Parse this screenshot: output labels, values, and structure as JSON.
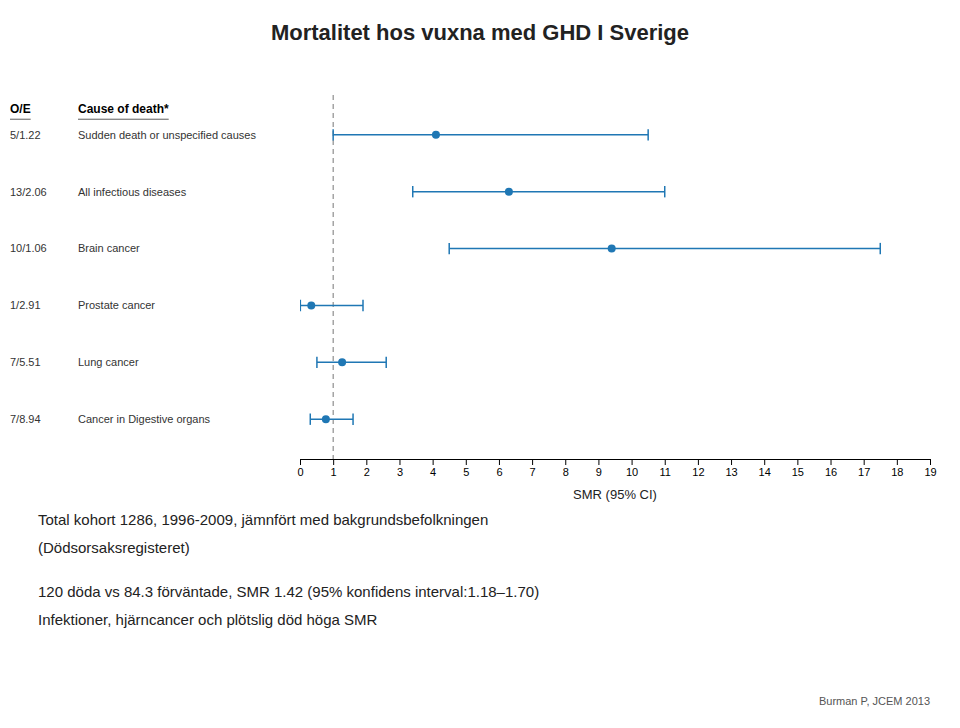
{
  "chart_data": {
    "type": "forest",
    "title": "Mortalitet hos vuxna med GHD I Sverige",
    "oe_header": "O/E",
    "category_header": "Cause of death*",
    "oe_labels": [
      "5/1.22",
      "13/2.06",
      "10/1.06",
      "1/2.91",
      "7/5.51",
      "7/8.94"
    ],
    "categories": [
      "Sudden death or unspecified causes",
      "All infectious diseases",
      "Brain cancer",
      "Prostate cancer",
      "Lung cancer",
      "Cancer in Digestive organs"
    ],
    "values": [
      4.1,
      6.3,
      9.4,
      0.34,
      1.27,
      0.78
    ],
    "ci_low": [
      1.0,
      3.4,
      4.5,
      0.01,
      0.51,
      0.31
    ],
    "ci_high": [
      10.5,
      11.0,
      17.5,
      1.9,
      2.6,
      1.6
    ],
    "xlim": [
      0,
      19
    ],
    "xticks": [
      0,
      1,
      2,
      3,
      4,
      5,
      6,
      7,
      8,
      9,
      10,
      11,
      12,
      13,
      14,
      15,
      16,
      17,
      18,
      19
    ],
    "xlabel": "SMR (95% CI)",
    "reference_line": 1.0,
    "grid": false,
    "annotations": [
      "Total kohort 1286, 1996-2009, jämnfört med bakgrundsbefolkningen",
      "(Dödsorsaksregisteret)",
      "120 döda vs 84.3 förväntade, SMR 1.42 (95% konfidens interval:1.18–1.70)",
      "Infektioner, hjärncancer och plötslig död höga SMR"
    ],
    "footnote": "Burman P, JCEM 2013"
  }
}
